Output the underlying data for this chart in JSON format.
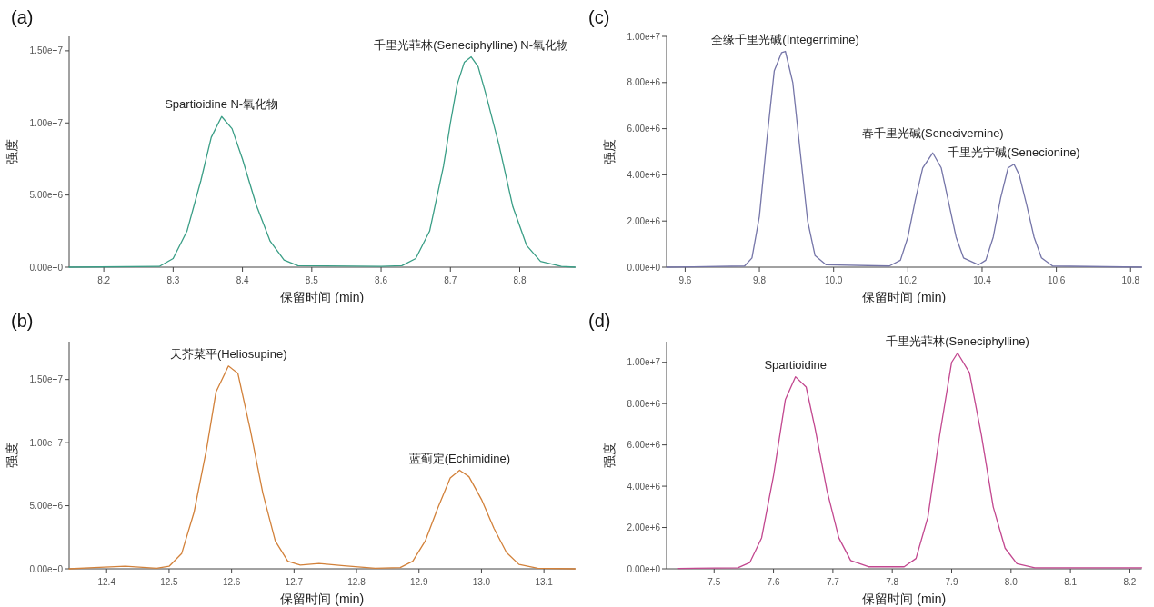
{
  "chart_data": [
    {
      "type": "line",
      "title": "(a)",
      "xlabel": "保留时间 (min)",
      "ylabel": "强度",
      "xlim": [
        8.15,
        8.88
      ],
      "ylim": [
        0,
        16000000
      ],
      "xticks": [
        8.2,
        8.3,
        8.4,
        8.5,
        8.6,
        8.7,
        8.8
      ],
      "yticks": [
        {
          "value": 0,
          "label": "0.00e+0"
        },
        {
          "value": 5000000,
          "label": "5.00e+6"
        },
        {
          "value": 10000000,
          "label": "1.00e+7"
        },
        {
          "value": 15000000,
          "label": "1.50e+7"
        }
      ],
      "series": [
        {
          "color": "#3a9e86",
          "x": [
            8.15,
            8.28,
            8.3,
            8.32,
            8.34,
            8.355,
            8.37,
            8.385,
            8.4,
            8.42,
            8.44,
            8.46,
            8.48,
            8.6,
            8.63,
            8.65,
            8.67,
            8.69,
            8.7,
            8.71,
            8.72,
            8.73,
            8.74,
            8.75,
            8.77,
            8.79,
            8.81,
            8.83,
            8.86,
            8.88
          ],
          "values": [
            0,
            50000,
            600000,
            2500000,
            6000000,
            9000000,
            10440000,
            9600000,
            7500000,
            4300000,
            1800000,
            500000,
            100000,
            50000,
            100000,
            600000,
            2500000,
            7000000,
            10000000,
            12700000,
            14200000,
            14580000,
            13900000,
            12200000,
            8500000,
            4200000,
            1500000,
            400000,
            50000,
            0
          ]
        }
      ],
      "annotations": [
        {
          "text": "Spartioidine N-氧化物",
          "x": 8.37,
          "y": 10440000
        },
        {
          "text": "千里光菲林(Seneciphylline) N-氧化物",
          "x": 8.73,
          "y": 14580000
        }
      ]
    },
    {
      "type": "line",
      "title": "(c)",
      "xlabel": "保留时间 (min)",
      "ylabel": "强度",
      "xlim": [
        9.55,
        10.83
      ],
      "ylim": [
        0,
        10000000
      ],
      "xticks": [
        9.6,
        9.8,
        {
          "value": 10,
          "label": "10.0"
        },
        10.2,
        10.4,
        10.6,
        10.8
      ],
      "yticks": [
        {
          "value": 0,
          "label": "0.00e+0"
        },
        {
          "value": 2000000,
          "label": "2.00e+6"
        },
        {
          "value": 4000000,
          "label": "4.00e+6"
        },
        {
          "value": 6000000,
          "label": "6.00e+6"
        },
        {
          "value": 8000000,
          "label": "8.00e+6"
        },
        {
          "value": 10000000,
          "label": "1.00e+7"
        }
      ],
      "series": [
        {
          "color": "#7575a8",
          "x": [
            9.55,
            9.76,
            9.78,
            9.8,
            9.82,
            9.84,
            9.86,
            9.87,
            9.89,
            9.91,
            9.93,
            9.95,
            9.98,
            10.15,
            10.18,
            10.2,
            10.22,
            10.24,
            10.267,
            10.29,
            10.31,
            10.33,
            10.35,
            10.39,
            10.41,
            10.43,
            10.45,
            10.47,
            10.486,
            10.5,
            10.52,
            10.54,
            10.56,
            10.59,
            10.83
          ],
          "values": [
            0,
            50000,
            400000,
            2200000,
            5500000,
            8500000,
            9300000,
            9350000,
            8000000,
            5000000,
            2000000,
            500000,
            100000,
            50000,
            300000,
            1300000,
            2900000,
            4300000,
            4950000,
            4300000,
            2800000,
            1300000,
            400000,
            100000,
            300000,
            1300000,
            3000000,
            4300000,
            4460000,
            4000000,
            2700000,
            1300000,
            400000,
            50000,
            0
          ]
        }
      ],
      "annotations": [
        {
          "text": "全缘千里光碱(Integerrimine)",
          "x": 9.87,
          "y": 9350000
        },
        {
          "text": "春千里光碱(Senecivernine)",
          "x": 10.267,
          "y": 4950000
        },
        {
          "text": "千里光宁碱(Senecionine)",
          "x": 10.486,
          "y": 4460000
        }
      ]
    },
    {
      "type": "line",
      "title": "(b)",
      "xlabel": "保留时间 (min)",
      "ylabel": "强度",
      "xlim": [
        12.34,
        13.15
      ],
      "ylim": [
        0,
        18000000
      ],
      "xticks": [
        12.4,
        12.5,
        12.6,
        12.7,
        12.8,
        12.9,
        {
          "value": 13,
          "label": "13.0"
        },
        13.1
      ],
      "yticks": [
        {
          "value": 0,
          "label": "0.00e+0"
        },
        {
          "value": 5000000,
          "label": "5.00e+6"
        },
        {
          "value": 10000000,
          "label": "1.00e+7"
        },
        {
          "value": 15000000,
          "label": "1.50e+7"
        }
      ],
      "series": [
        {
          "color": "#d2813a",
          "x": [
            12.34,
            12.38,
            12.43,
            12.48,
            12.5,
            12.52,
            12.54,
            12.56,
            12.575,
            12.595,
            12.61,
            12.63,
            12.65,
            12.67,
            12.69,
            12.71,
            12.74,
            12.78,
            12.83,
            12.87,
            12.89,
            12.91,
            12.93,
            12.95,
            12.965,
            12.98,
            13.0,
            13.02,
            13.04,
            13.06,
            13.09,
            13.15
          ],
          "values": [
            0,
            100000,
            200000,
            50000,
            200000,
            1200000,
            4500000,
            9500000,
            14000000,
            16070000,
            15500000,
            11000000,
            6000000,
            2200000,
            600000,
            300000,
            420000,
            250000,
            50000,
            100000,
            600000,
            2200000,
            4800000,
            7200000,
            7810000,
            7300000,
            5500000,
            3200000,
            1300000,
            350000,
            50000,
            0
          ]
        }
      ],
      "annotations": [
        {
          "text": "天芥菜平(Heliosupine)",
          "x": 12.595,
          "y": 16070000
        },
        {
          "text": "蓝蓟定(Echimidine)",
          "x": 12.965,
          "y": 7810000
        }
      ]
    },
    {
      "type": "line",
      "title": "(d)",
      "xlabel": "保留时间 (min)",
      "ylabel": "强度",
      "xlim": [
        7.42,
        8.22
      ],
      "ylim": [
        0,
        11000000
      ],
      "xticks": [
        7.5,
        7.6,
        7.7,
        7.8,
        7.9,
        {
          "value": 8,
          "label": "8.0"
        },
        8.1,
        8.2
      ],
      "yticks": [
        {
          "value": 0,
          "label": "0.00e+0"
        },
        {
          "value": 2000000,
          "label": "2.00e+6"
        },
        {
          "value": 4000000,
          "label": "4.00e+6"
        },
        {
          "value": 6000000,
          "label": "6.00e+6"
        },
        {
          "value": 8000000,
          "label": "8.00e+6"
        },
        {
          "value": 10000000,
          "label": "1.00e+7"
        }
      ],
      "series": [
        {
          "color": "#c2478f",
          "x": [
            7.44,
            7.54,
            7.56,
            7.58,
            7.6,
            7.62,
            7.637,
            7.655,
            7.67,
            7.69,
            7.71,
            7.73,
            7.76,
            7.82,
            7.84,
            7.86,
            7.88,
            7.9,
            7.91,
            7.93,
            7.95,
            7.97,
            7.99,
            8.01,
            8.04,
            8.22
          ],
          "values": [
            20000,
            50000,
            300000,
            1500000,
            4500000,
            8200000,
            9300000,
            8800000,
            6800000,
            3800000,
            1500000,
            400000,
            100000,
            100000,
            500000,
            2500000,
            6500000,
            10000000,
            10450000,
            9500000,
            6500000,
            3000000,
            1000000,
            250000,
            50000,
            50000
          ]
        }
      ],
      "annotations": [
        {
          "text": "Spartioidine",
          "x": 7.637,
          "y": 9300000
        },
        {
          "text": "千里光菲林(Seneciphylline)",
          "x": 7.91,
          "y": 10450000
        }
      ]
    }
  ]
}
